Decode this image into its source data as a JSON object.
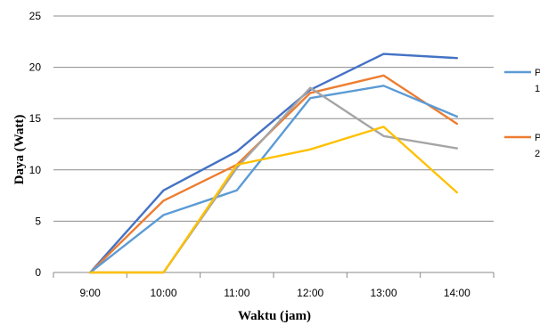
{
  "chart_data": {
    "type": "line",
    "xlabel": "Waktu (jam)",
    "ylabel": "Daya (Watt)",
    "categories": [
      "9:00",
      "10:00",
      "11:00",
      "12:00",
      "13:00",
      "14:00"
    ],
    "ylim": [
      0,
      25
    ],
    "yticks": [
      "0",
      "5",
      "10",
      "15",
      "20",
      "25"
    ],
    "grid": "horizontal",
    "legend_placement": "right (partially cut off)",
    "series": [
      {
        "color": "#4472c4",
        "values": [
          0,
          8.0,
          11.8,
          17.8,
          21.3,
          20.9
        ]
      },
      {
        "color": "#ed7d31",
        "values": [
          0,
          7.0,
          10.5,
          17.5,
          19.2,
          14.5
        ]
      },
      {
        "color": "#5b9bd5",
        "values": [
          0,
          5.6,
          8.0,
          17.0,
          18.2,
          15.2
        ]
      },
      {
        "color": "#a5a5a5",
        "values": [
          0,
          0,
          10.2,
          18.0,
          13.3,
          12.1
        ]
      },
      {
        "color": "#ffc000",
        "values": [
          0,
          0,
          10.5,
          12.0,
          14.2,
          7.8
        ]
      }
    ],
    "legend": [
      {
        "color": "#5b9bd5",
        "text_1": "P",
        "text_2": "1"
      },
      {
        "color": "#ed7d31",
        "text_1": "P",
        "text_2": "2"
      }
    ]
  }
}
